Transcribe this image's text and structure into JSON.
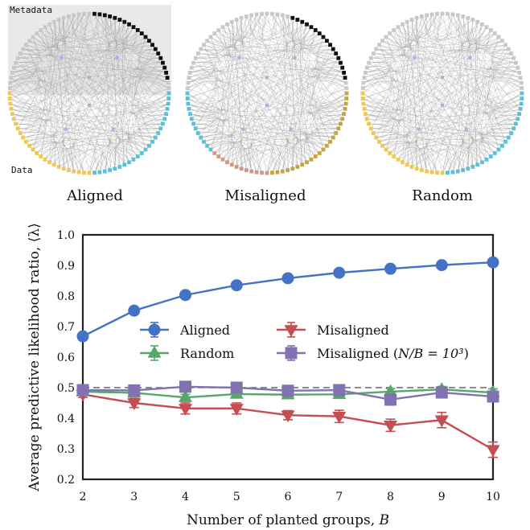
{
  "diagrams": {
    "metadata_label": "Metadata",
    "data_label": "Data",
    "panels": [
      "Aligned",
      "Misaligned",
      "Random"
    ],
    "colors": {
      "metadata": "#c8c8c8",
      "metadata_planted": "#111111",
      "yellow": "#f0c755",
      "cyan": "#5bc0d8",
      "rose": "#cc9a8a",
      "olive": "#c4a443",
      "core": "#9fb7de"
    }
  },
  "chart_data": {
    "type": "line",
    "xlabel": "Number of planted groups, B",
    "ylabel": "Average predictive likelihood ratio, ⟨λ⟩",
    "xlim": [
      2,
      10
    ],
    "ylim": [
      0.2,
      1.0
    ],
    "x": [
      2,
      3,
      4,
      5,
      6,
      7,
      8,
      9,
      10
    ],
    "xticks": [
      "2",
      "3",
      "4",
      "5",
      "6",
      "7",
      "8",
      "9",
      "10"
    ],
    "yticks": [
      "0.2",
      "0.3",
      "0.4",
      "0.5",
      "0.6",
      "0.7",
      "0.8",
      "0.9",
      "1.0"
    ],
    "reference_line": 0.5,
    "series": [
      {
        "name": "Aligned",
        "color": "#4472c4",
        "marker": "circle",
        "values": [
          0.668,
          0.752,
          0.803,
          0.835,
          0.858,
          0.876,
          0.889,
          0.901,
          0.91
        ],
        "errors": [
          0.005,
          0.005,
          0.005,
          0.005,
          0.005,
          0.005,
          0.005,
          0.005,
          0.005
        ]
      },
      {
        "name": "Random",
        "color": "#55a868",
        "marker": "triangle-up",
        "values": [
          0.487,
          0.483,
          0.468,
          0.479,
          0.477,
          0.478,
          0.487,
          0.494,
          0.484
        ],
        "errors": [
          0.008,
          0.008,
          0.01,
          0.01,
          0.01,
          0.01,
          0.01,
          0.01,
          0.012
        ]
      },
      {
        "name": "Misaligned",
        "color": "#c44e52",
        "marker": "triangle-down",
        "values": [
          0.478,
          0.45,
          0.432,
          0.432,
          0.41,
          0.406,
          0.377,
          0.394,
          0.297
        ],
        "errors": [
          0.01,
          0.015,
          0.018,
          0.018,
          0.015,
          0.02,
          0.02,
          0.025,
          0.025
        ]
      },
      {
        "name": "Misaligned (N/B = 10³)",
        "color": "#8172b2",
        "marker": "square",
        "values": [
          0.492,
          0.491,
          0.503,
          0.5,
          0.49,
          0.492,
          0.461,
          0.484,
          0.471
        ],
        "errors": [
          0.01,
          0.01,
          0.01,
          0.012,
          0.015,
          0.012,
          0.018,
          0.015,
          0.012
        ]
      }
    ]
  }
}
